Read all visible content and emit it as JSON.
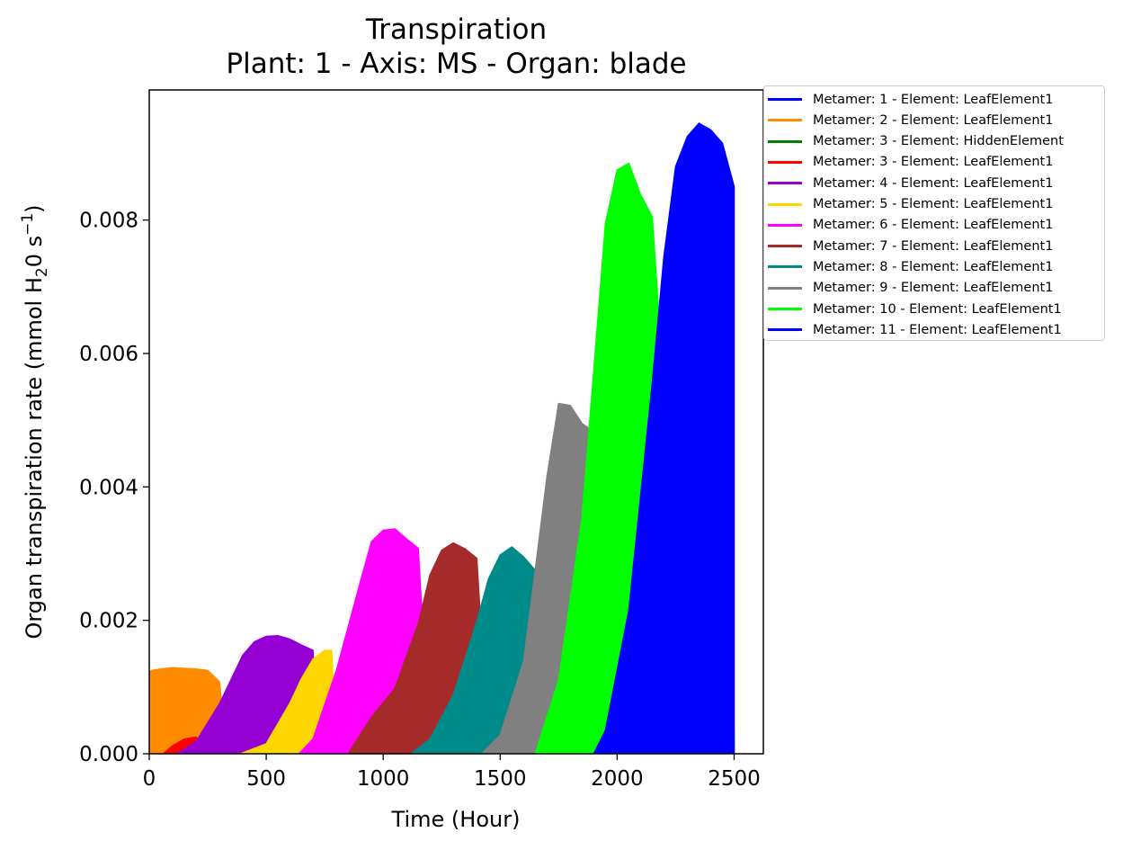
{
  "chart_data": {
    "type": "area",
    "title": "Transpiration",
    "subtitle": "Plant: 1 - Axis: MS - Organ: blade",
    "xlabel": "Time (Hour)",
    "ylabel": "Organ transpiration rate (mmol H2O s-1)",
    "xlim": [
      0,
      2625
    ],
    "ylim": [
      0,
      0.00995
    ],
    "xticks": [
      "0",
      "500",
      "1000",
      "1500",
      "2000",
      "2500"
    ],
    "yticks": [
      "0.000",
      "0.002",
      "0.004",
      "0.006",
      "0.008"
    ],
    "legend_position": "outside-top-right",
    "series": [
      {
        "name": "Metamer: 1 - Element: LeafElement1",
        "color": "#0000ff",
        "x": [],
        "y": []
      },
      {
        "name": "Metamer: 2 - Element: LeafElement1",
        "color": "#ff8c00",
        "x": [
          0,
          10,
          50,
          100,
          150,
          200,
          250,
          300,
          330
        ],
        "y": [
          0.00122,
          0.00125,
          0.00127,
          0.00129,
          0.00128,
          0.00127,
          0.00125,
          0.00108,
          0.0
        ]
      },
      {
        "name": "Metamer: 3 - Element: HiddenElement",
        "color": "#008000",
        "x": [],
        "y": []
      },
      {
        "name": "Metamer: 3 - Element: LeafElement1",
        "color": "#ff0000",
        "x": [
          60,
          100,
          150,
          200,
          250
        ],
        "y": [
          0.0,
          0.00012,
          0.00022,
          0.00025,
          0.0
        ]
      },
      {
        "name": "Metamer: 4 - Element: LeafElement1",
        "color": "#9400d3",
        "x": [
          120,
          200,
          300,
          400,
          450,
          500,
          550,
          600,
          650,
          700,
          720
        ],
        "y": [
          0.0,
          0.00018,
          0.00075,
          0.00148,
          0.00168,
          0.00176,
          0.00177,
          0.00172,
          0.00163,
          0.00155,
          0.0
        ]
      },
      {
        "name": "Metamer: 5 - Element: LeafElement1",
        "color": "#ffd700",
        "x": [
          390,
          500,
          600,
          650,
          700,
          750,
          780,
          800
        ],
        "y": [
          0.0,
          0.00015,
          0.00075,
          0.00112,
          0.00142,
          0.00155,
          0.00155,
          0.0
        ]
      },
      {
        "name": "Metamer: 6 - Element: LeafElement1",
        "color": "#ff00ff",
        "x": [
          640,
          700,
          800,
          900,
          950,
          1000,
          1050,
          1100,
          1150,
          1200
        ],
        "y": [
          0.0,
          0.00022,
          0.00125,
          0.00255,
          0.00318,
          0.00335,
          0.00337,
          0.00322,
          0.00308,
          0.0
        ]
      },
      {
        "name": "Metamer: 7 - Element: LeafElement1",
        "color": "#a52a2a",
        "x": [
          850,
          950,
          1050,
          1150,
          1200,
          1250,
          1300,
          1350,
          1400,
          1450
        ],
        "y": [
          0.0,
          0.00055,
          0.00098,
          0.00195,
          0.00268,
          0.00305,
          0.00316,
          0.00307,
          0.00293,
          0.0
        ]
      },
      {
        "name": "Metamer: 8 - Element: LeafElement1",
        "color": "#008b8b",
        "x": [
          1120,
          1200,
          1300,
          1400,
          1450,
          1500,
          1550,
          1600,
          1650,
          2200,
          2250
        ],
        "y": [
          0.0,
          0.00022,
          0.00088,
          0.00198,
          0.00262,
          0.00298,
          0.0031,
          0.00295,
          0.00275,
          0.0001,
          0.0
        ]
      },
      {
        "name": "Metamer: 9 - Element: LeafElement1",
        "color": "#808080",
        "x": [
          1420,
          1500,
          1600,
          1650,
          1700,
          1750,
          1800,
          1850,
          1890,
          1950,
          2200,
          2500
        ],
        "y": [
          0.0,
          0.00028,
          0.00138,
          0.00275,
          0.00415,
          0.00525,
          0.00522,
          0.00495,
          0.00485,
          0.0001,
          0.00025,
          0.0001
        ]
      },
      {
        "name": "Metamer: 10 - Element: LeafElement1",
        "color": "#00ff00",
        "x": [
          1650,
          1750,
          1850,
          1900,
          1950,
          2000,
          2050,
          2100,
          2150,
          2300,
          2500
        ],
        "y": [
          0.0,
          0.0011,
          0.00355,
          0.00575,
          0.00795,
          0.00875,
          0.00885,
          0.00838,
          0.00805,
          0.00032,
          0.00032
        ]
      },
      {
        "name": "Metamer: 11 - Element: LeafElement1",
        "color": "#0000ff",
        "x": [
          1900,
          1950,
          2050,
          2150,
          2200,
          2250,
          2300,
          2350,
          2400,
          2450,
          2500
        ],
        "y": [
          0.0,
          0.00035,
          0.00215,
          0.00555,
          0.00745,
          0.0088,
          0.00925,
          0.00945,
          0.00935,
          0.00915,
          0.0085
        ]
      }
    ]
  }
}
